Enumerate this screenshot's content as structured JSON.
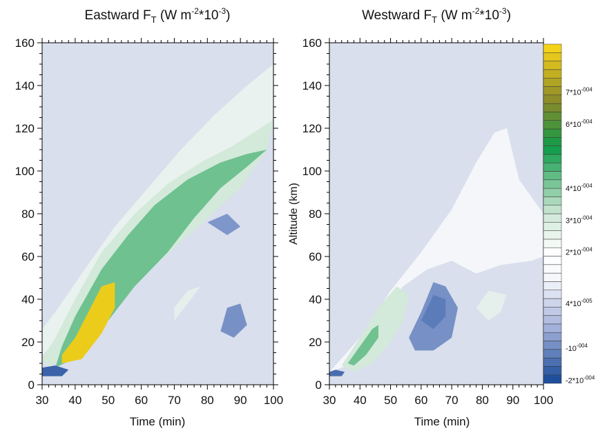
{
  "chart_data": [
    {
      "type": "heatmap",
      "title": {
        "main": "Eastward F",
        "sub": "T",
        "unit_pre": " (W m",
        "sup": "-2",
        "unit_post": "*10",
        "sup2": "-3",
        "close": ")"
      },
      "xlabel": "Time (min)",
      "ylabel": "",
      "xlim": [
        30,
        100
      ],
      "ylim": [
        0,
        160
      ],
      "xticks": [
        30,
        40,
        50,
        60,
        70,
        80,
        90,
        100
      ],
      "yticks": [
        0,
        20,
        40,
        60,
        80,
        100,
        120,
        140,
        160
      ],
      "features": [
        {
          "kind": "positive",
          "level": 0.15,
          "path": [
            [
              28,
              10
            ],
            [
              36,
              24
            ],
            [
              46,
              38
            ],
            [
              56,
              50
            ],
            [
              66,
              62
            ],
            [
              76,
              76
            ],
            [
              86,
              94
            ],
            [
              94,
              110
            ],
            [
              100,
              125
            ],
            [
              100,
              150
            ],
            [
              92,
              140
            ],
            [
              82,
              126
            ],
            [
              72,
              110
            ],
            [
              62,
              92
            ],
            [
              52,
              74
            ],
            [
              42,
              52
            ],
            [
              34,
              34
            ],
            [
              28,
              22
            ]
          ]
        },
        {
          "kind": "positive",
          "level": 0.45,
          "path": [
            [
              32,
              8
            ],
            [
              40,
              18
            ],
            [
              50,
              34
            ],
            [
              60,
              50
            ],
            [
              70,
              64
            ],
            [
              80,
              78
            ],
            [
              90,
              92
            ],
            [
              98,
              110
            ],
            [
              100,
              124
            ],
            [
              96,
              120
            ],
            [
              88,
              112
            ],
            [
              78,
              104
            ],
            [
              68,
              94
            ],
            [
              58,
              80
            ],
            [
              48,
              62
            ],
            [
              40,
              40
            ],
            [
              34,
              22
            ],
            [
              30,
              12
            ]
          ]
        },
        {
          "kind": "positive",
          "level": 0.75,
          "path": [
            [
              34,
              8
            ],
            [
              42,
              14
            ],
            [
              50,
              30
            ],
            [
              58,
              46
            ],
            [
              68,
              62
            ],
            [
              76,
              78
            ],
            [
              84,
              92
            ],
            [
              92,
              102
            ],
            [
              98,
              110
            ],
            [
              92,
              108
            ],
            [
              84,
              104
            ],
            [
              74,
              96
            ],
            [
              64,
              84
            ],
            [
              56,
              70
            ],
            [
              48,
              54
            ],
            [
              40,
              32
            ],
            [
              36,
              18
            ]
          ]
        },
        {
          "kind": "peak",
          "level": 0.92,
          "path": [
            [
              36,
              10
            ],
            [
              42,
              12
            ],
            [
              48,
              24
            ],
            [
              52,
              36
            ],
            [
              52,
              48
            ],
            [
              48,
              46
            ],
            [
              44,
              34
            ],
            [
              40,
              22
            ],
            [
              36,
              14
            ]
          ]
        },
        {
          "kind": "negative",
          "level": 0.8,
          "path": [
            [
              30,
              4
            ],
            [
              36,
              4
            ],
            [
              38,
              7
            ],
            [
              34,
              9
            ],
            [
              30,
              8
            ]
          ]
        },
        {
          "kind": "negative",
          "level": 0.35,
          "path": [
            [
              84,
              25
            ],
            [
              88,
              22
            ],
            [
              92,
              28
            ],
            [
              90,
              38
            ],
            [
              86,
              36
            ]
          ]
        },
        {
          "kind": "negative",
          "level": 0.3,
          "path": [
            [
              80,
              76
            ],
            [
              86,
              80
            ],
            [
              90,
              74
            ],
            [
              86,
              70
            ]
          ]
        },
        {
          "kind": "positive",
          "level": 0.2,
          "path": [
            [
              70,
              30
            ],
            [
              74,
              38
            ],
            [
              78,
              46
            ],
            [
              74,
              44
            ],
            [
              70,
              36
            ]
          ]
        }
      ]
    },
    {
      "type": "heatmap",
      "title": {
        "main": "Westward F",
        "sub": "T",
        "unit_pre": " (W m",
        "sup": "-2",
        "unit_post": "*10",
        "sup2": "-3",
        "close": ")"
      },
      "xlabel": "Time (min)",
      "ylabel": "Altitude (km)",
      "xlim": [
        30,
        100
      ],
      "ylim": [
        0,
        160
      ],
      "xticks": [
        30,
        40,
        50,
        60,
        70,
        80,
        90,
        100
      ],
      "yticks": [
        0,
        20,
        40,
        60,
        80,
        100,
        120,
        140,
        160
      ],
      "features": [
        {
          "kind": "pale",
          "level": 0.15,
          "path": [
            [
              30,
              6
            ],
            [
              40,
              22
            ],
            [
              50,
              44
            ],
            [
              60,
              62
            ],
            [
              70,
              82
            ],
            [
              78,
              104
            ],
            [
              84,
              118
            ],
            [
              88,
              120
            ],
            [
              90,
              108
            ],
            [
              92,
              96
            ],
            [
              96,
              88
            ],
            [
              100,
              80
            ],
            [
              100,
              60
            ],
            [
              96,
              58
            ],
            [
              86,
              56
            ],
            [
              78,
              52
            ],
            [
              70,
              58
            ],
            [
              62,
              54
            ],
            [
              54,
              46
            ],
            [
              46,
              30
            ],
            [
              38,
              10
            ]
          ]
        },
        {
          "kind": "positive",
          "level": 0.45,
          "path": [
            [
              34,
              9
            ],
            [
              40,
              22
            ],
            [
              46,
              36
            ],
            [
              52,
              46
            ],
            [
              56,
              42
            ],
            [
              54,
              30
            ],
            [
              50,
              20
            ],
            [
              44,
              10
            ],
            [
              38,
              6
            ]
          ]
        },
        {
          "kind": "positive",
          "level": 0.75,
          "path": [
            [
              36,
              10
            ],
            [
              40,
              18
            ],
            [
              44,
              26
            ],
            [
              46,
              28
            ],
            [
              46,
              22
            ],
            [
              42,
              14
            ],
            [
              38,
              9
            ]
          ]
        },
        {
          "kind": "negative",
          "level": 0.35,
          "path": [
            [
              56,
              22
            ],
            [
              60,
              34
            ],
            [
              64,
              48
            ],
            [
              68,
              46
            ],
            [
              72,
              36
            ],
            [
              70,
              22
            ],
            [
              64,
              16
            ],
            [
              58,
              16
            ]
          ]
        },
        {
          "kind": "negative",
          "level": 0.55,
          "path": [
            [
              60,
              30
            ],
            [
              64,
              42
            ],
            [
              68,
              40
            ],
            [
              68,
              32
            ],
            [
              64,
              26
            ]
          ]
        },
        {
          "kind": "positive",
          "level": 0.2,
          "path": [
            [
              78,
              36
            ],
            [
              82,
              44
            ],
            [
              88,
              42
            ],
            [
              86,
              34
            ],
            [
              82,
              30
            ]
          ]
        },
        {
          "kind": "negative",
          "level": 0.7,
          "path": [
            [
              30,
              4
            ],
            [
              34,
              4
            ],
            [
              35,
              6
            ],
            [
              32,
              7
            ],
            [
              30,
              6
            ]
          ]
        }
      ]
    }
  ],
  "colorbar": {
    "labels": [
      {
        "base": "7*10",
        "exp": "-004",
        "value": 0.0007
      },
      {
        "base": "6*10",
        "exp": "-004",
        "value": 0.0006
      },
      {
        "base": "4*10",
        "exp": "-004",
        "value": 0.0004
      },
      {
        "base": "3*10",
        "exp": "-004",
        "value": 0.0003
      },
      {
        "base": "2*10",
        "exp": "-004",
        "value": 0.0002
      },
      {
        "base": "4*10",
        "exp": "-005",
        "value": 4e-05
      },
      {
        "base": "-10",
        "exp": "-004",
        "value": -0.0001
      },
      {
        "base": "-2*10",
        "exp": "-004",
        "value": -0.0002
      }
    ]
  },
  "colors": {
    "background_field": "#d9dfec",
    "negative_deep": "#1f4f9c",
    "negative_light": "#a7b4dc",
    "zero_white": "#f4f6fa",
    "positive_light": "#cfe7d6",
    "positive_mid": "#0f9b4a",
    "positive_olive": "#8a8a2a",
    "peak_yellow": "#f5d21a"
  }
}
